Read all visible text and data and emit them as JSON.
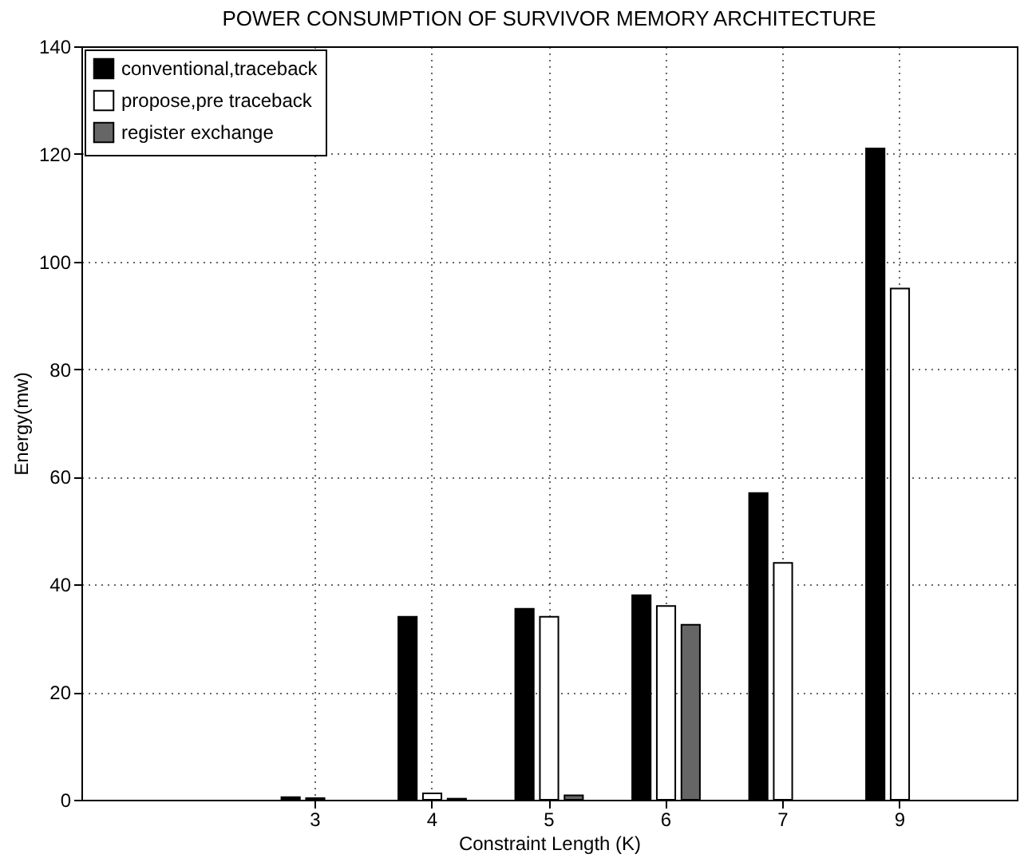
{
  "chart_data": {
    "type": "bar",
    "title": "POWER CONSUMPTION OF SURVIVOR MEMORY ARCHITECTURE",
    "xlabel": "Constraint Length (K)",
    "ylabel": "Energy(mw)",
    "categories": [
      null,
      "3",
      "4",
      "5",
      "6",
      "7",
      "9"
    ],
    "series": [
      {
        "name": "conventional,traceback",
        "color": "#000000",
        "values": [
          null,
          0.5,
          34,
          35.5,
          38,
          57,
          121
        ]
      },
      {
        "name": "propose,pre traceback",
        "color": "#ffffff",
        "values": [
          null,
          0.3,
          1.2,
          34,
          36,
          44,
          95
        ]
      },
      {
        "name": "register exchange",
        "color": "#666666",
        "values": [
          null,
          null,
          0.2,
          0.8,
          32.5,
          null,
          null
        ]
      }
    ],
    "ylim": [
      0,
      140
    ],
    "yticks": [
      0,
      20,
      40,
      60,
      80,
      100,
      120,
      140
    ],
    "grid": true,
    "legend": "top left",
    "line_style": "dotted"
  }
}
